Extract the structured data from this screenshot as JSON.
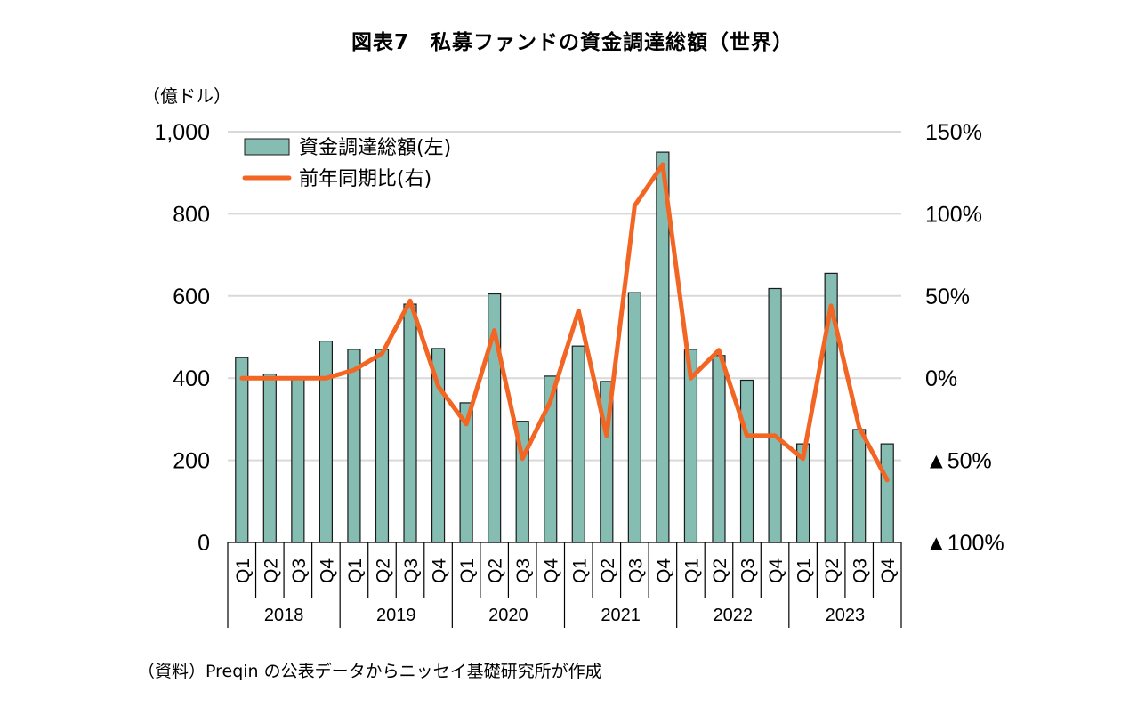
{
  "title": "図表7　私募ファンドの資金調達総額（世界）",
  "unit_label": "（億ドル）",
  "source_note": "（資料）Preqin の公表データからニッセイ基礎研究所が作成",
  "colors": {
    "bar": "#85bdb3",
    "bar_edge": "#1a1a1a",
    "line": "#f26522",
    "grid": "#d9d9d9"
  },
  "chart_data": {
    "type": "bar+line",
    "title": "図表7　私募ファンドの資金調達総額（世界）",
    "categories": [
      "Q1",
      "Q2",
      "Q3",
      "Q4",
      "Q1",
      "Q2",
      "Q3",
      "Q4",
      "Q1",
      "Q2",
      "Q3",
      "Q4",
      "Q1",
      "Q2",
      "Q3",
      "Q4",
      "Q1",
      "Q2",
      "Q3",
      "Q4",
      "Q1",
      "Q2",
      "Q3",
      "Q4"
    ],
    "years": [
      "2018",
      "2019",
      "2020",
      "2021",
      "2022",
      "2023"
    ],
    "series": [
      {
        "name": "資金調達総額(左)",
        "axis": "left",
        "type": "bar",
        "values": [
          450,
          410,
          400,
          490,
          470,
          470,
          580,
          472,
          340,
          605,
          295,
          405,
          478,
          392,
          608,
          950,
          470,
          455,
          395,
          618,
          240,
          655,
          275,
          240
        ]
      },
      {
        "name": "前年同期比(右)",
        "axis": "right",
        "type": "line",
        "values": [
          0,
          0,
          0,
          0,
          5,
          15,
          47,
          -5,
          -28,
          29,
          -49,
          -14,
          41,
          -35,
          105,
          130,
          0,
          17,
          -35,
          -35,
          -49,
          44,
          -30,
          -62
        ]
      }
    ],
    "y_left": {
      "min": 0,
      "max": 1000,
      "ticks": [
        0,
        200,
        400,
        600,
        800,
        1000
      ],
      "tick_labels": [
        "0",
        "200",
        "400",
        "600",
        "800",
        "1,000"
      ]
    },
    "y_right": {
      "min": -100,
      "max": 150,
      "ticks": [
        -100,
        -50,
        0,
        50,
        100,
        150
      ],
      "tick_labels": [
        "▲100%",
        "▲50%",
        "0%",
        "50%",
        "100%",
        "150%"
      ]
    },
    "legend_position": "top-left",
    "grid": true
  }
}
